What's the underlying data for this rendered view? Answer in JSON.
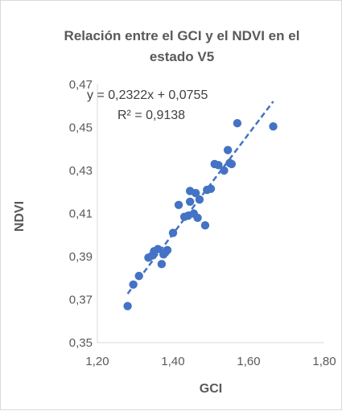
{
  "chart_data": {
    "type": "scatter",
    "title_line1": "Relación entre el GCI y el NDVI en el",
    "title_line2": "estado V5",
    "xlabel": "GCI",
    "ylabel": "NDVI",
    "xlim": [
      1.2,
      1.8
    ],
    "ylim": [
      0.35,
      0.47
    ],
    "x_ticks": [
      1.2,
      1.4,
      1.6,
      1.8
    ],
    "x_tick_labels": [
      "1,20",
      "1,40",
      "1,60",
      "1,80"
    ],
    "y_ticks": [
      0.35,
      0.37,
      0.39,
      0.41,
      0.43,
      0.45,
      0.47
    ],
    "y_tick_labels": [
      "0,35",
      "0,37",
      "0,39",
      "0,41",
      "0,43",
      "0,45",
      "0,47"
    ],
    "grid": false,
    "legend": "none",
    "marker_color": "#4472c4",
    "trendline_color": "#4472c4",
    "trendline": {
      "slope": 0.2322,
      "intercept": 0.0755,
      "x_range": [
        1.28,
        1.665
      ],
      "style": "dashed"
    },
    "equation_text": "y = 0,2322x + 0,0755",
    "r2_text": "R² = 0,9138",
    "points": [
      {
        "x": 1.28,
        "y": 0.367
      },
      {
        "x": 1.295,
        "y": 0.377
      },
      {
        "x": 1.31,
        "y": 0.381
      },
      {
        "x": 1.335,
        "y": 0.3895
      },
      {
        "x": 1.345,
        "y": 0.3905
      },
      {
        "x": 1.35,
        "y": 0.3925
      },
      {
        "x": 1.36,
        "y": 0.3935
      },
      {
        "x": 1.37,
        "y": 0.3865
      },
      {
        "x": 1.375,
        "y": 0.391
      },
      {
        "x": 1.38,
        "y": 0.392
      },
      {
        "x": 1.385,
        "y": 0.393
      },
      {
        "x": 1.4,
        "y": 0.401
      },
      {
        "x": 1.415,
        "y": 0.414
      },
      {
        "x": 1.43,
        "y": 0.4085
      },
      {
        "x": 1.44,
        "y": 0.409
      },
      {
        "x": 1.445,
        "y": 0.4155
      },
      {
        "x": 1.445,
        "y": 0.4205
      },
      {
        "x": 1.455,
        "y": 0.41
      },
      {
        "x": 1.46,
        "y": 0.4195
      },
      {
        "x": 1.465,
        "y": 0.408
      },
      {
        "x": 1.47,
        "y": 0.4165
      },
      {
        "x": 1.485,
        "y": 0.4045
      },
      {
        "x": 1.49,
        "y": 0.421
      },
      {
        "x": 1.5,
        "y": 0.4215
      },
      {
        "x": 1.51,
        "y": 0.433
      },
      {
        "x": 1.52,
        "y": 0.4325
      },
      {
        "x": 1.535,
        "y": 0.43
      },
      {
        "x": 1.545,
        "y": 0.4395
      },
      {
        "x": 1.55,
        "y": 0.4335
      },
      {
        "x": 1.555,
        "y": 0.433
      },
      {
        "x": 1.57,
        "y": 0.452
      },
      {
        "x": 1.665,
        "y": 0.4505
      }
    ]
  }
}
